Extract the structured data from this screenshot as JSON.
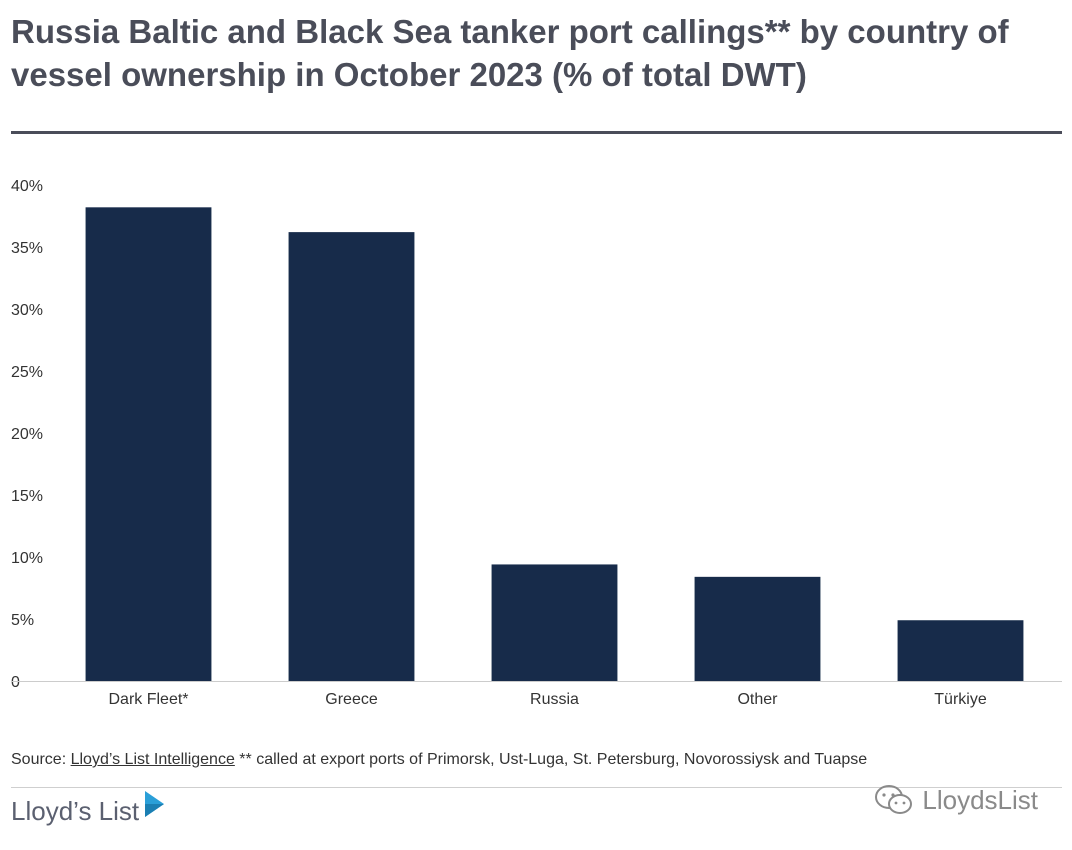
{
  "title": "Russia Baltic and Black Sea tanker port callings** by country of vessel ownership in October 2023 (% of total DWT)",
  "chart_data": {
    "type": "bar",
    "categories": [
      "Dark Fleet*",
      "Greece",
      "Russia",
      "Other",
      "Türkiye"
    ],
    "values": [
      38.2,
      36.2,
      9.4,
      8.4,
      4.9
    ],
    "ylim": [
      0,
      40
    ],
    "yticks": [
      0,
      5,
      10,
      15,
      20,
      25,
      30,
      35,
      40
    ],
    "ytick_labels": [
      "0",
      "5%",
      "10%",
      "15%",
      "20%",
      "25%",
      "30%",
      "35%",
      "40%"
    ],
    "grid": false,
    "bar_color": "#172b4a"
  },
  "footer": {
    "source_label": "Source:",
    "source_link": "Lloyd’s List Intelligence",
    "source_note": "** called at export ports of Primorsk, Ust-Luga, St. Petersburg, Novorossiysk and Tuapse"
  },
  "brand": {
    "logo_text": "Lloyd’s List",
    "logo_icon": "play-triangle-icon",
    "accent_color": "#2a9fd8"
  },
  "watermark": {
    "icon": "wechat-icon",
    "text": "LloydsList"
  }
}
